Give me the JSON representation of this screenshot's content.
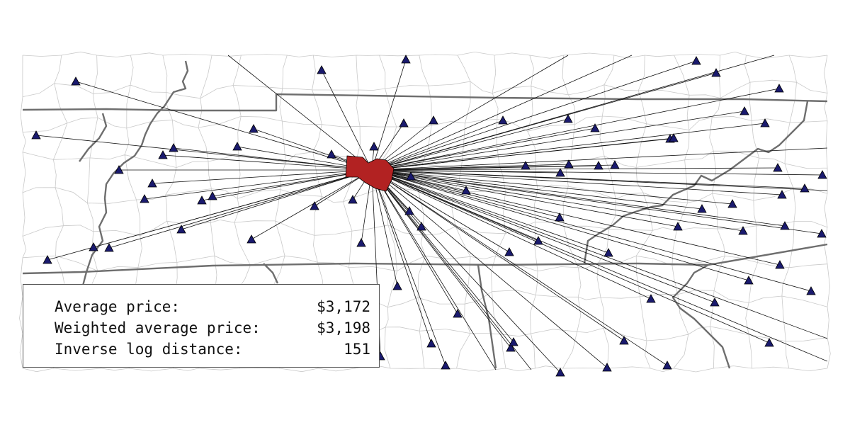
{
  "colors": {
    "county_border": "#c9c9c9",
    "state_border": "#6e6e6e",
    "ray_line": "#111111",
    "highlight_county": "#b22222",
    "marker_fill": "#1a1a6e",
    "marker_stroke": "#000000"
  },
  "icons": {
    "marker": "triangle-marker-icon",
    "origin": "origin-county-icon"
  },
  "stats": {
    "average_label": "Average price:",
    "average_value": "$3,172",
    "weighted_label": "Weighted average price:",
    "weighted_value": "$3,198",
    "distance_label": "Inverse log distance:",
    "distance_value": "151"
  }
}
